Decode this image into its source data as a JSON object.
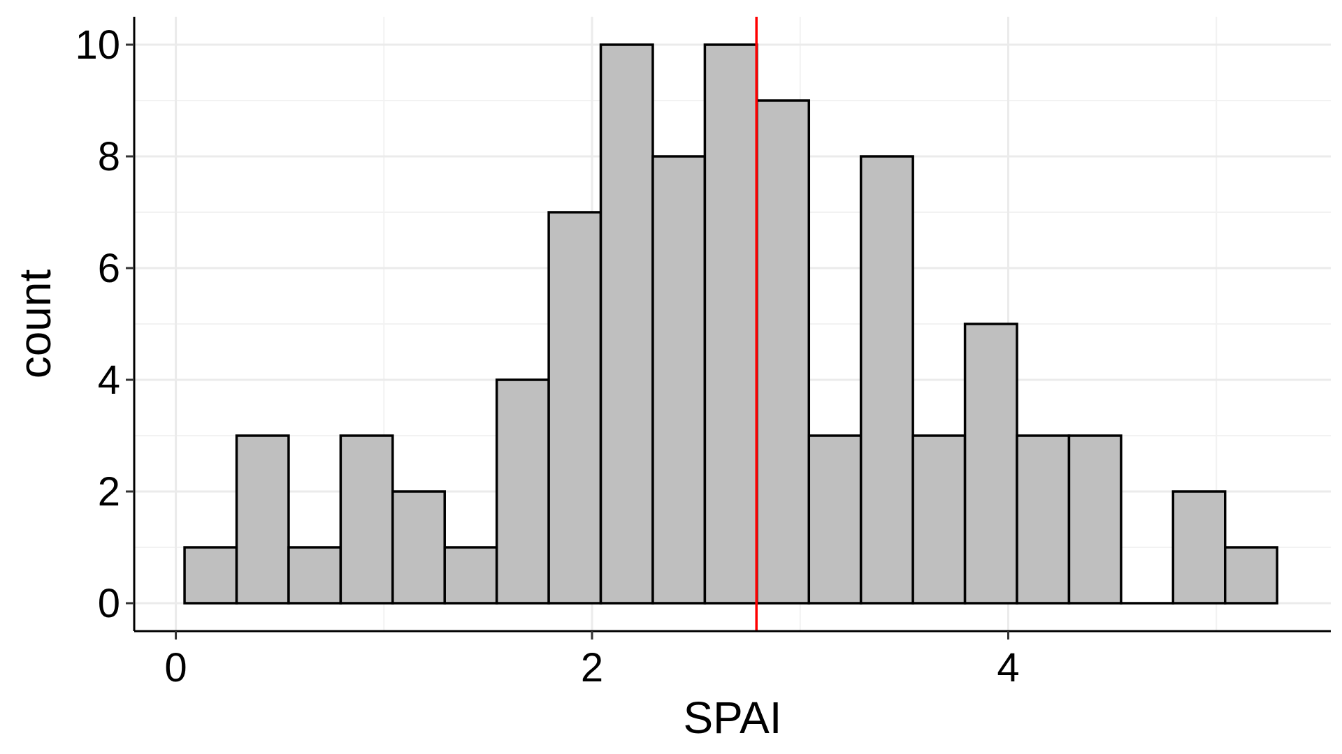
{
  "chart_data": {
    "type": "bar",
    "subtype": "histogram",
    "title": "",
    "xlabel": "SPAI",
    "ylabel": "count",
    "xlim": [
      -0.2,
      5.55
    ],
    "ylim": [
      -0.5,
      10.5
    ],
    "x_ticks": [
      0,
      2,
      4
    ],
    "y_ticks": [
      0,
      2,
      4,
      6,
      8,
      10
    ],
    "x_minor_grid": [
      1,
      3,
      5
    ],
    "y_minor_grid": [
      1,
      3,
      5,
      7,
      9
    ],
    "bin_width": 0.25,
    "bin_centers": [
      0.167,
      0.417,
      0.667,
      0.917,
      1.167,
      1.417,
      1.667,
      1.917,
      2.167,
      2.417,
      2.667,
      2.917,
      3.167,
      3.417,
      3.667,
      3.917,
      4.167,
      4.417,
      4.667,
      4.917,
      5.167
    ],
    "counts": [
      1,
      3,
      1,
      3,
      2,
      1,
      4,
      7,
      10,
      8,
      10,
      9,
      3,
      8,
      3,
      5,
      3,
      3,
      0,
      2,
      1
    ],
    "bar_fill": "#bfbfbf",
    "bar_outline": "#000000",
    "reference_line": {
      "x": 2.79,
      "color": "#ff0000"
    },
    "grid": true,
    "legend": "none"
  }
}
